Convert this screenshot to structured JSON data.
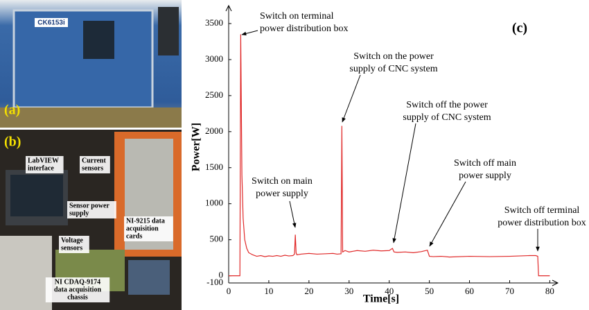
{
  "photos": {
    "a": {
      "label": "(a)",
      "brand": "CK6153i"
    },
    "b": {
      "label": "(b)",
      "callouts": [
        [
          "LabVIEW",
          "interface"
        ],
        [
          "Current",
          "sensors"
        ],
        [
          "Sensor power",
          "supply"
        ],
        [
          "NI-9215 data",
          "acquisition",
          "cards"
        ],
        [
          "Voltage",
          "sensors"
        ],
        [
          "NI CDAQ-9174",
          "data acquisition",
          "chassis"
        ]
      ]
    }
  },
  "chart_data": {
    "type": "line",
    "title": "(c)",
    "x_label": "Time[s]",
    "y_label": "Power[W]",
    "xlim": [
      0,
      82
    ],
    "ylim": [
      -100,
      3750
    ],
    "xticks": [
      0,
      10,
      20,
      30,
      40,
      50,
      60,
      70,
      80
    ],
    "yticks": [
      -100,
      0,
      500,
      1000,
      1500,
      2000,
      2500,
      3000,
      3500
    ],
    "x": [
      0,
      2.8,
      3.0,
      3.3,
      3.6,
      4.0,
      4.5,
      5,
      6,
      7,
      8,
      9,
      10,
      11,
      12,
      13,
      14,
      15,
      16,
      16.4,
      16.6,
      16.8,
      17,
      18,
      20,
      22,
      24,
      26,
      27,
      28,
      28.2,
      28.4,
      29,
      30,
      32,
      34,
      36,
      38,
      40,
      40.8,
      41.2,
      42,
      44,
      46,
      48,
      49.5,
      50,
      51,
      53,
      55,
      60,
      65,
      70,
      75,
      76.5,
      77,
      77.2,
      80
    ],
    "series": [
      {
        "color": "#e02828",
        "values": [
          0,
          0,
          3350,
          1400,
          800,
          500,
          380,
          320,
          290,
          270,
          280,
          265,
          275,
          270,
          280,
          270,
          285,
          275,
          280,
          300,
          570,
          320,
          290,
          300,
          310,
          300,
          305,
          310,
          300,
          305,
          2080,
          330,
          350,
          330,
          350,
          340,
          355,
          345,
          350,
          380,
          330,
          325,
          330,
          320,
          335,
          355,
          270,
          265,
          270,
          260,
          270,
          265,
          270,
          280,
          280,
          270,
          0,
          0
        ]
      }
    ],
    "annotations": [
      [
        "Switch on terminal",
        "power distribution box"
      ],
      [
        "Switch on main",
        "power supply"
      ],
      [
        "Switch on the power",
        "supply  of CNC system"
      ],
      [
        "Switch off the power",
        "supply  of CNC system"
      ],
      [
        "Switch off main",
        "power supply"
      ],
      [
        "Switch off terminal",
        "power distribution box"
      ]
    ]
  }
}
